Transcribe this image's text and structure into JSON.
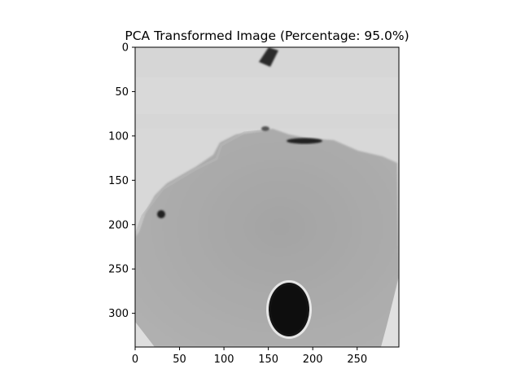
{
  "figure": {
    "title": "PCA Transformed Image (Percentage: 95.0%)"
  },
  "axes": {
    "xlim": [
      0,
      297
    ],
    "ylim": [
      0,
      338
    ],
    "x_ticks": [
      {
        "value": 0,
        "label": "0"
      },
      {
        "value": 50,
        "label": "50"
      },
      {
        "value": 100,
        "label": "100"
      },
      {
        "value": 150,
        "label": "150"
      },
      {
        "value": 200,
        "label": "200"
      },
      {
        "value": 250,
        "label": "250"
      }
    ],
    "y_ticks": [
      {
        "value": 0,
        "label": "0"
      },
      {
        "value": 50,
        "label": "50"
      },
      {
        "value": 100,
        "label": "100"
      },
      {
        "value": 150,
        "label": "150"
      },
      {
        "value": 200,
        "label": "200"
      },
      {
        "value": 250,
        "label": "250"
      },
      {
        "value": 300,
        "label": "300"
      }
    ]
  },
  "image": {
    "colormap": "grayscale",
    "colors": {
      "top_region": "#d6d6d6",
      "body_region": "#a8a8a8",
      "dark_blob": "#1a1a1a",
      "corner_light": "#dedede"
    }
  }
}
